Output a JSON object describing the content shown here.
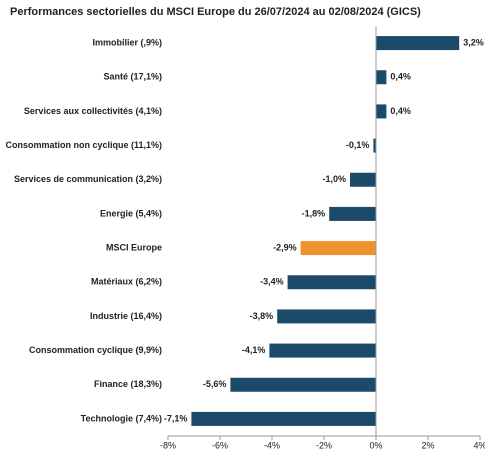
{
  "chart_data": {
    "type": "barh",
    "title": "Performances sectorielles du MSCI Europe du 26/07/2024 au 02/08/2024 (GICS)",
    "categories": [
      "Immobilier (,9%)",
      "Santé (17,1%)",
      "Services aux collectivités (4,1%)",
      "Consommation non cyclique (11,1%)",
      "Services de communication (3,2%)",
      "Energie (5,4%)",
      "MSCI Europe",
      "Matériaux (6,2%)",
      "Industrie (16,4%)",
      "Consommation cyclique (9,9%)",
      "Finance (18,3%)",
      "Technologie (7,4%)"
    ],
    "values": [
      3.2,
      0.4,
      0.4,
      -0.1,
      -1.0,
      -1.8,
      -2.9,
      -3.4,
      -3.8,
      -4.1,
      -5.6,
      -7.1
    ],
    "value_labels": [
      "3,2%",
      "0,4%",
      "0,4%",
      "-0,1%",
      "-1,0%",
      "-1,8%",
      "-2,9%",
      "-3,4%",
      "-3,8%",
      "-4,1%",
      "-5,6%",
      "-7,1%"
    ],
    "colors": [
      "#1b4a6b",
      "#1b4a6b",
      "#1b4a6b",
      "#1b4a6b",
      "#1b4a6b",
      "#1b4a6b",
      "#f0922b",
      "#1b4a6b",
      "#1b4a6b",
      "#1b4a6b",
      "#1b4a6b",
      "#1b4a6b"
    ],
    "xlim": [
      -8,
      4
    ],
    "xticks": [
      {
        "value": -8,
        "label": "-8%"
      },
      {
        "value": -6,
        "label": "-6%"
      },
      {
        "value": -4,
        "label": "-4%"
      },
      {
        "value": -2,
        "label": "-2%"
      },
      {
        "value": 0,
        "label": "0%"
      },
      {
        "value": 2,
        "label": "2%"
      },
      {
        "value": 4,
        "label": "4%"
      }
    ]
  }
}
